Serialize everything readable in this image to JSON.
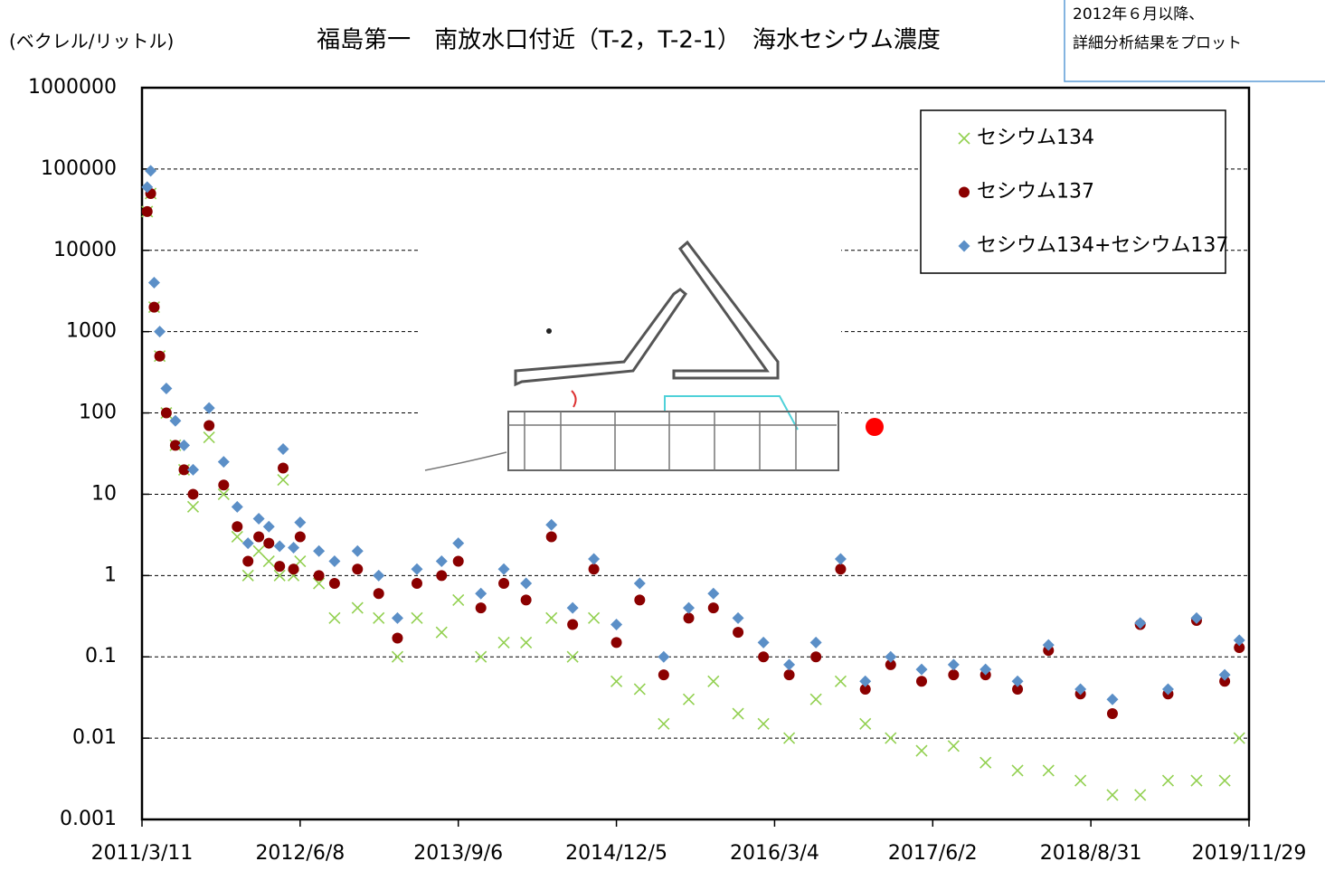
{
  "chart_data": {
    "type": "scatter",
    "title": "福島第一　南放水口付近（T-2，T-2-1）　海水セシウム濃度",
    "y_axis_label": "(ベクレル/リットル)",
    "note": [
      "2012年６月以降、",
      "詳細分析結果をプロット"
    ],
    "log_y": true,
    "grid": true,
    "legend_position": "upper-right",
    "xlim": [
      "2011/3/11",
      "2019/11/29"
    ],
    "xticks": [
      "2011/3/11",
      "2012/6/8",
      "2013/9/6",
      "2014/12/5",
      "2016/3/4",
      "2017/6/2",
      "2018/8/31",
      "2019/11/29"
    ],
    "ylim": [
      0.001,
      1000000
    ],
    "yticks": [
      0.001,
      0.01,
      0.1,
      1,
      10,
      100,
      1000,
      10000,
      100000,
      1000000
    ],
    "x": [
      "2011/3/26",
      "2011/4/5",
      "2011/4/15",
      "2011/5/1",
      "2011/5/20",
      "2011/6/15",
      "2011/7/10",
      "2011/8/5",
      "2011/9/20",
      "2011/11/1",
      "2011/12/10",
      "2012/1/10",
      "2012/2/10",
      "2012/3/10",
      "2012/4/10",
      "2012/4/20",
      "2012/5/20",
      "2012/6/8",
      "2012/8/1",
      "2012/9/15",
      "2012/11/20",
      "2013/1/20",
      "2013/3/15",
      "2013/5/10",
      "2013/7/20",
      "2013/9/6",
      "2013/11/10",
      "2014/1/15",
      "2014/3/20",
      "2014/6/1",
      "2014/8/1",
      "2014/10/1",
      "2014/12/5",
      "2015/2/10",
      "2015/4/20",
      "2015/7/1",
      "2015/9/10",
      "2015/11/20",
      "2016/2/1",
      "2016/4/15",
      "2016/7/1",
      "2016/9/10",
      "2016/11/20",
      "2017/2/1",
      "2017/5/1",
      "2017/8/1",
      "2017/11/1",
      "2018/2/1",
      "2018/5/1",
      "2018/8/1",
      "2018/11/1",
      "2019/1/20",
      "2019/4/10",
      "2019/7/1",
      "2019/9/20",
      "2019/11/1"
    ],
    "series": [
      {
        "name": "セシウム134",
        "color": "#92d050",
        "marker": "x",
        "values": [
          30000,
          50000,
          2000,
          500,
          100,
          40,
          20,
          7,
          50,
          10,
          3,
          1,
          2,
          1.5,
          1,
          15,
          1,
          1.5,
          0.8,
          0.3,
          0.4,
          0.3,
          0.1,
          0.3,
          0.2,
          0.5,
          0.1,
          0.15,
          0.15,
          0.3,
          0.1,
          0.3,
          0.05,
          0.04,
          0.015,
          0.03,
          0.05,
          0.02,
          0.015,
          0.01,
          0.03,
          0.05,
          0.015,
          0.01,
          0.007,
          0.008,
          0.005,
          0.004,
          0.004,
          0.003,
          0.002,
          0.002,
          0.003,
          0.003,
          0.003,
          0.01
        ]
      },
      {
        "name": "セシウム137",
        "color": "#8b0000",
        "marker": "circle",
        "values": [
          30000,
          50000,
          2000,
          500,
          100,
          40,
          20,
          10,
          70,
          13,
          4,
          1.5,
          3,
          2.5,
          1.3,
          21,
          1.2,
          3,
          1,
          0.8,
          1.2,
          0.6,
          0.17,
          0.8,
          1,
          1.5,
          0.4,
          0.8,
          0.5,
          3,
          0.25,
          1.2,
          0.15,
          0.5,
          0.06,
          0.3,
          0.4,
          0.2,
          0.1,
          0.06,
          0.1,
          1.2,
          0.04,
          0.08,
          0.05,
          0.06,
          0.06,
          0.04,
          0.12,
          0.035,
          0.02,
          0.25,
          0.035,
          0.28,
          0.05,
          0.13
        ]
      },
      {
        "name": "セシウム134+セシウム137",
        "color": "#5b8fc7",
        "marker": "diamond",
        "values": [
          60000,
          95000,
          4000,
          1000,
          200,
          80,
          40,
          20,
          115,
          25,
          7,
          2.5,
          5,
          4,
          2.3,
          36,
          2.2,
          4.5,
          2,
          1.5,
          2,
          1,
          0.3,
          1.2,
          1.5,
          2.5,
          0.6,
          1.2,
          0.8,
          4.2,
          0.4,
          1.6,
          0.25,
          0.8,
          0.1,
          0.4,
          0.6,
          0.3,
          0.15,
          0.08,
          0.15,
          1.6,
          0.05,
          0.1,
          0.07,
          0.08,
          0.07,
          0.05,
          0.14,
          0.04,
          0.03,
          0.26,
          0.04,
          0.3,
          0.06,
          0.16
        ]
      }
    ]
  }
}
